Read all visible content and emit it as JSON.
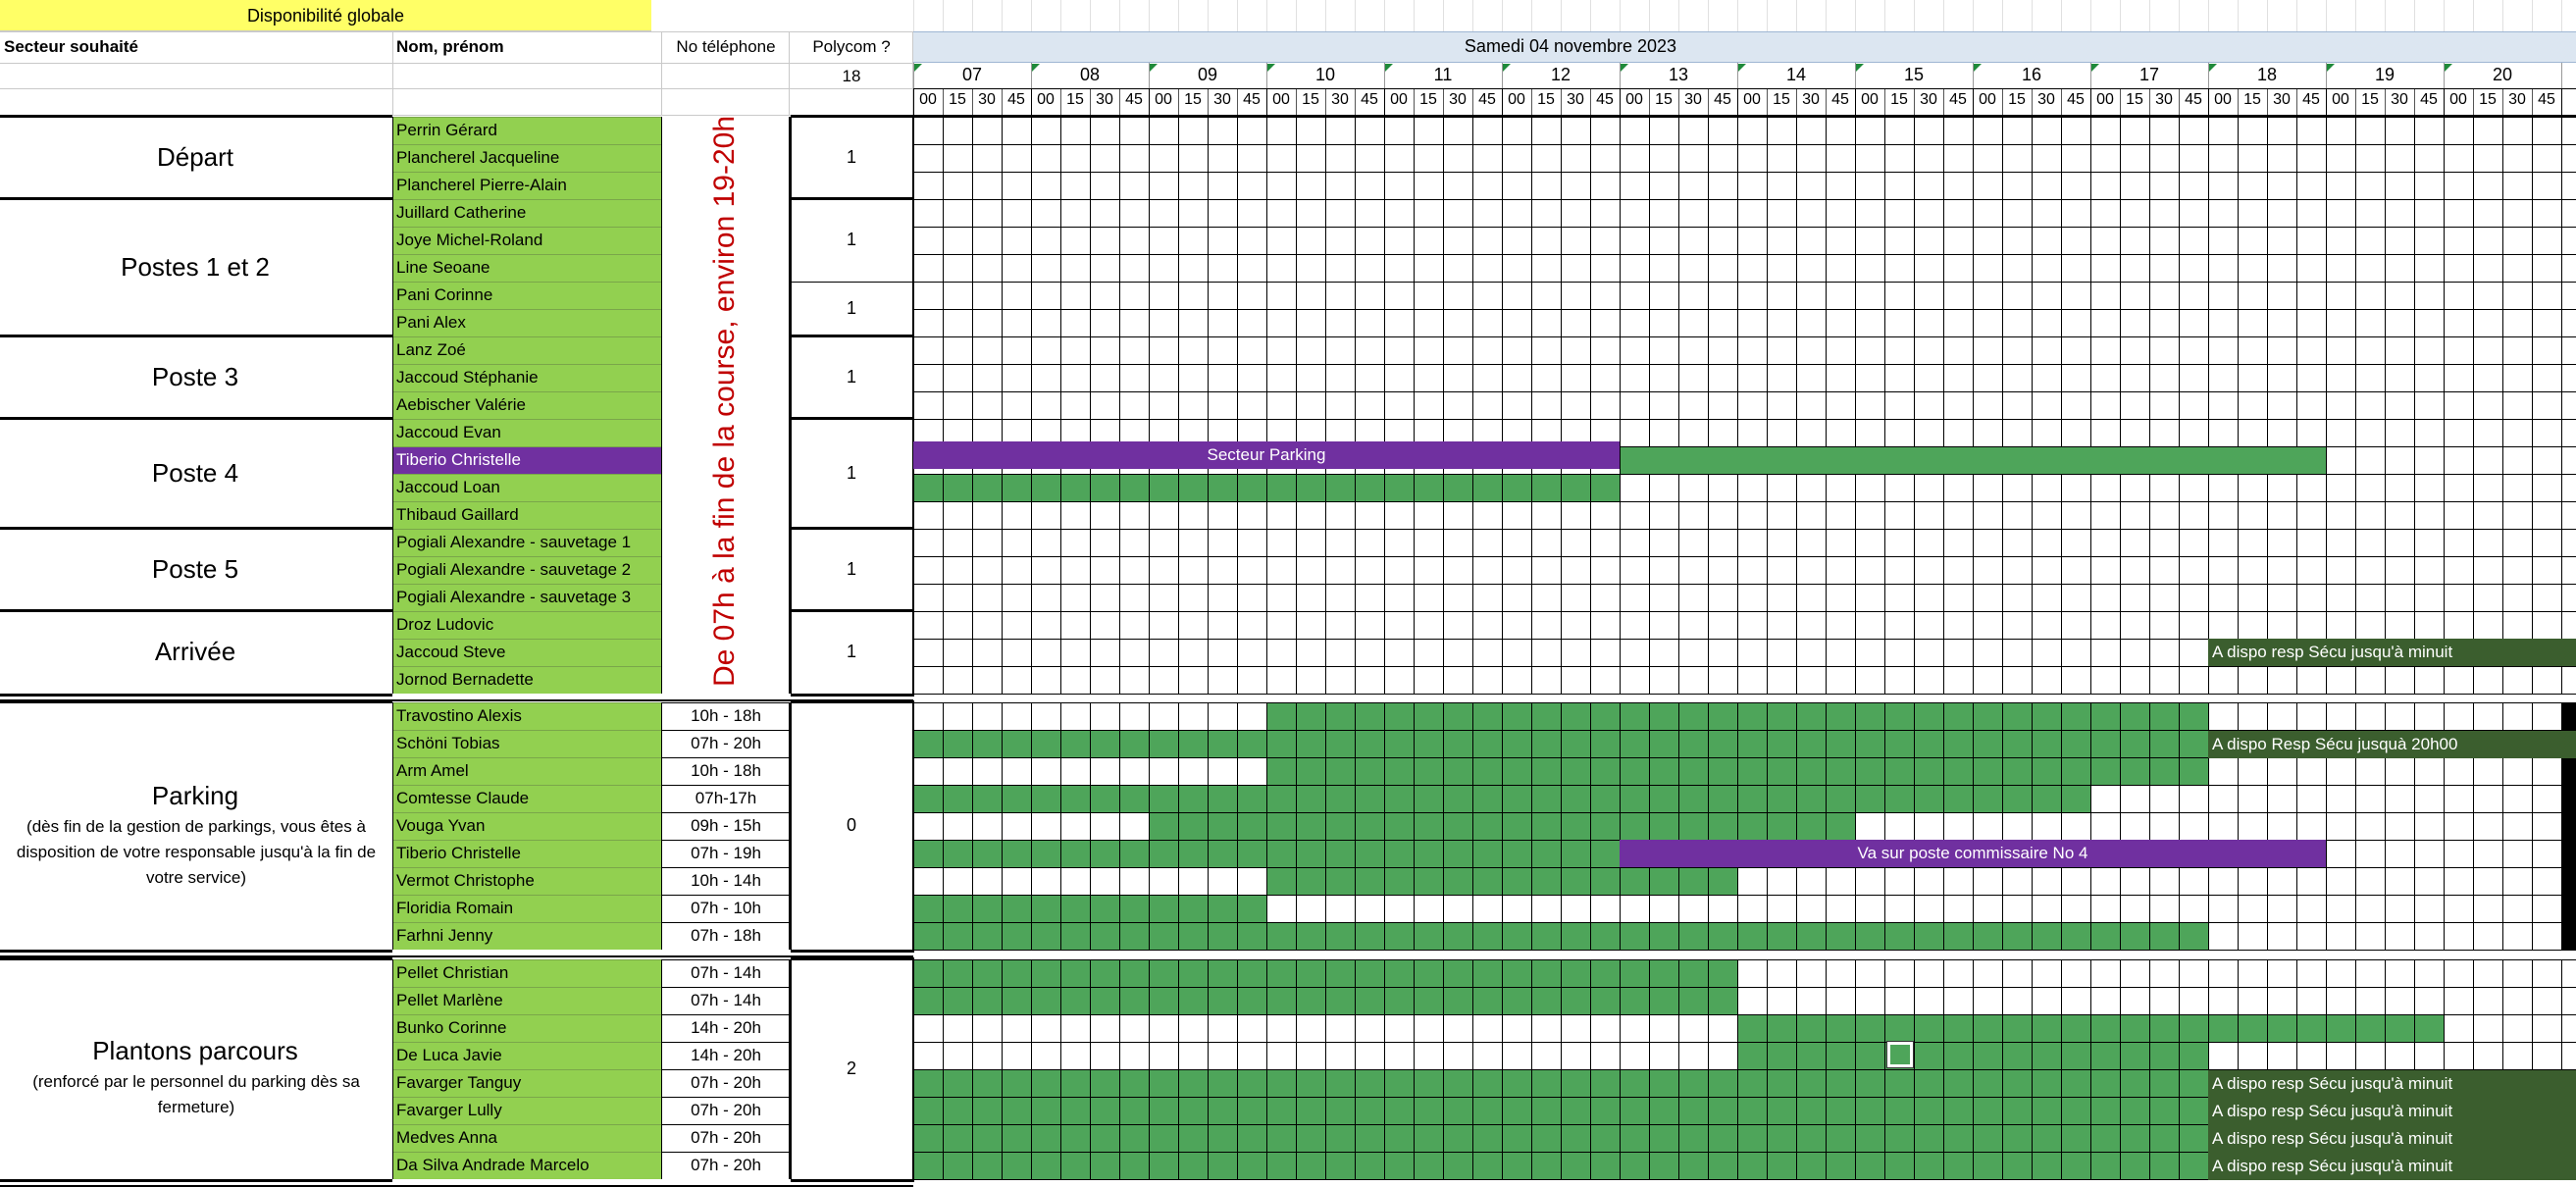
{
  "header": {
    "banner": "Disponibilité globale",
    "col_sector": "Secteur souhaité",
    "col_name": "Nom, prénom",
    "col_phone": "No téléphone",
    "col_polycom": "Polycom ?",
    "polycom_total": "18",
    "date": "Samedi 04 novembre 2023"
  },
  "timeline": {
    "hours": [
      "07",
      "08",
      "09",
      "10",
      "11",
      "12",
      "13",
      "14",
      "15",
      "16",
      "17",
      "18",
      "19",
      "20"
    ],
    "minutes": [
      "00",
      "15",
      "30",
      "45"
    ]
  },
  "availability_note": "De 07h à la fin de la course, environ 19-20h",
  "sectors": [
    {
      "name": "Départ",
      "note": ""
    },
    {
      "name": "Postes 1 et 2",
      "note": ""
    },
    {
      "name": "Poste 3",
      "note": ""
    },
    {
      "name": "Poste 4",
      "note": ""
    },
    {
      "name": "Poste 5",
      "note": ""
    },
    {
      "name": "Arrivée",
      "note": ""
    },
    {
      "name": "Parking",
      "note": "(dès fin de la gestion de parkings, vous êtes à disposition de votre responsable jusqu'à la fin de votre service)"
    },
    {
      "name": "Plantons parcours",
      "note": "(renforcé par le personnel du parking dès sa fermeture)"
    }
  ],
  "polycom_values": [
    "1",
    "1",
    "1",
    "1",
    "1",
    "1",
    "1",
    "0",
    "2"
  ],
  "people": [
    {
      "name": "Perrin Gérard",
      "hours": ""
    },
    {
      "name": "Plancherel Jacqueline",
      "hours": ""
    },
    {
      "name": "Plancherel Pierre-Alain",
      "hours": ""
    },
    {
      "name": "Juillard Catherine",
      "hours": ""
    },
    {
      "name": "Joye Michel-Roland",
      "hours": ""
    },
    {
      "name": "Line Seoane",
      "hours": ""
    },
    {
      "name": "Pani Corinne",
      "hours": ""
    },
    {
      "name": "Pani Alex",
      "hours": ""
    },
    {
      "name": "Lanz Zoé",
      "hours": ""
    },
    {
      "name": "Jaccoud Stéphanie",
      "hours": ""
    },
    {
      "name": "Aebischer Valérie",
      "hours": ""
    },
    {
      "name": "Jaccoud Evan",
      "hours": ""
    },
    {
      "name": "Tiberio Christelle",
      "hours": ""
    },
    {
      "name": "Jaccoud Loan",
      "hours": ""
    },
    {
      "name": "Thibaud Gaillard",
      "hours": ""
    },
    {
      "name": "Pogiali Alexandre - sauvetage 1",
      "hours": ""
    },
    {
      "name": "Pogiali Alexandre - sauvetage 2",
      "hours": ""
    },
    {
      "name": "Pogiali Alexandre - sauvetage 3",
      "hours": ""
    },
    {
      "name": "Droz Ludovic",
      "hours": ""
    },
    {
      "name": "Jaccoud Steve",
      "hours": ""
    },
    {
      "name": "Jornod Bernadette",
      "hours": ""
    },
    {
      "name": "Travostino Alexis",
      "hours": "10h - 18h"
    },
    {
      "name": "Schöni Tobias",
      "hours": "07h - 20h"
    },
    {
      "name": "Arm Amel",
      "hours": "10h - 18h"
    },
    {
      "name": "Comtesse Claude",
      "hours": "07h-17h"
    },
    {
      "name": "Vouga Yvan",
      "hours": "09h - 15h"
    },
    {
      "name": "Tiberio Christelle",
      "hours": "07h - 19h"
    },
    {
      "name": "Vermot Christophe",
      "hours": "10h - 14h"
    },
    {
      "name": "Floridia Romain",
      "hours": "07h - 10h"
    },
    {
      "name": "Farhni Jenny",
      "hours": "07h - 18h"
    },
    {
      "name": "Pellet Christian",
      "hours": "07h - 14h"
    },
    {
      "name": "Pellet Marlène",
      "hours": "07h - 14h"
    },
    {
      "name": "Bunko Corinne",
      "hours": "14h - 20h"
    },
    {
      "name": "De Luca Javie",
      "hours": "14h - 20h"
    },
    {
      "name": "Favarger Tanguy",
      "hours": "07h - 20h"
    },
    {
      "name": "Favarger Lully",
      "hours": "07h - 20h"
    },
    {
      "name": "Medves Anna",
      "hours": "07h - 20h"
    },
    {
      "name": "Da Silva Andrade Marcelo",
      "hours": "07h - 20h"
    }
  ],
  "bar_labels": {
    "secteur_parking": "Secteur Parking",
    "dispo_minuit": "A dispo resp Sécu jusqu'à minuit",
    "dispo_20h": "A dispo Resp Sécu jusquà 20h00",
    "va_poste4": "Va sur poste commissaire No 4"
  },
  "colors": {
    "banner": "#ffff66",
    "name_green": "#92d050",
    "grid_green": "#4ea55a",
    "purple": "#7030a0",
    "dark_green": "#3b5e2e",
    "note_red": "#c00000",
    "date_header": "#dce6f1"
  }
}
